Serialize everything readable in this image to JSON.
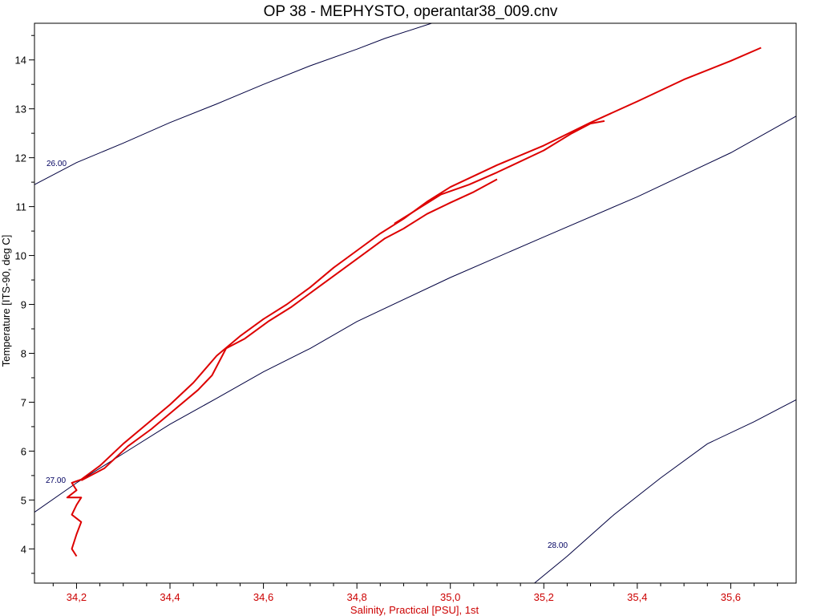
{
  "chart_data": {
    "type": "line",
    "title": "OP 38 - MEPHYSTO, operantar38_009.cnv",
    "xlabel": "Salinity, Practical [PSU], 1st",
    "ylabel": "Temperature [ITS-90, deg C]",
    "xlim": [
      34.11,
      35.74
    ],
    "ylim": [
      3.3,
      14.75
    ],
    "x_ticks": [
      34.2,
      34.4,
      34.6,
      34.8,
      35.0,
      35.2,
      35.4,
      35.6
    ],
    "x_tick_labels": [
      "34,2",
      "34,4",
      "34,6",
      "34,8",
      "35,0",
      "35,2",
      "35,4",
      "35,6"
    ],
    "y_ticks": [
      4,
      5,
      6,
      7,
      8,
      9,
      10,
      11,
      12,
      13,
      14
    ],
    "y_tick_labels": [
      "4",
      "5",
      "6",
      "7",
      "8",
      "9",
      "10",
      "11",
      "12",
      "13",
      "14"
    ],
    "grid": false,
    "colors": {
      "profile": "#dd0000",
      "isopycnal": "#000040",
      "axis": "#000000",
      "x_axis_text": "#cc0000"
    },
    "isopycnals": [
      {
        "label": "26.00",
        "points": [
          [
            34.11,
            11.45
          ],
          [
            34.2,
            11.9
          ],
          [
            34.3,
            12.3
          ],
          [
            34.4,
            12.72
          ],
          [
            34.5,
            13.1
          ],
          [
            34.6,
            13.5
          ],
          [
            34.7,
            13.88
          ],
          [
            34.8,
            14.22
          ],
          [
            34.86,
            14.44
          ],
          [
            34.96,
            14.75
          ]
        ]
      },
      {
        "label": "27.00",
        "points": [
          [
            34.11,
            4.75
          ],
          [
            34.2,
            5.35
          ],
          [
            34.3,
            5.95
          ],
          [
            34.4,
            6.55
          ],
          [
            34.5,
            7.08
          ],
          [
            34.6,
            7.62
          ],
          [
            34.7,
            8.1
          ],
          [
            34.8,
            8.65
          ],
          [
            35.0,
            9.55
          ],
          [
            35.2,
            10.38
          ],
          [
            35.4,
            11.2
          ],
          [
            35.6,
            12.1
          ],
          [
            35.74,
            12.85
          ]
        ]
      },
      {
        "label": "28.00",
        "points": [
          [
            35.18,
            3.3
          ],
          [
            35.25,
            3.85
          ],
          [
            35.35,
            4.7
          ],
          [
            35.45,
            5.45
          ],
          [
            35.55,
            6.15
          ],
          [
            35.65,
            6.6
          ],
          [
            35.74,
            7.05
          ]
        ]
      }
    ],
    "series": [
      {
        "values_xy": [
          [
            34.2,
            3.85
          ],
          [
            34.19,
            4.0
          ],
          [
            34.2,
            4.3
          ],
          [
            34.21,
            4.55
          ],
          [
            34.19,
            4.7
          ],
          [
            34.2,
            4.9
          ],
          [
            34.21,
            5.05
          ],
          [
            34.18,
            5.05
          ],
          [
            34.2,
            5.2
          ],
          [
            34.19,
            5.35
          ],
          [
            34.21,
            5.42
          ],
          [
            34.25,
            5.7
          ],
          [
            34.3,
            6.15
          ],
          [
            34.35,
            6.55
          ],
          [
            34.4,
            6.95
          ],
          [
            34.45,
            7.4
          ],
          [
            34.5,
            7.95
          ],
          [
            34.55,
            8.35
          ],
          [
            34.6,
            8.7
          ],
          [
            34.65,
            9.0
          ],
          [
            34.7,
            9.35
          ],
          [
            34.75,
            9.75
          ],
          [
            34.8,
            10.1
          ],
          [
            34.85,
            10.45
          ],
          [
            34.9,
            10.75
          ],
          [
            34.95,
            11.1
          ],
          [
            35.0,
            11.4
          ],
          [
            35.1,
            11.85
          ],
          [
            35.2,
            12.25
          ],
          [
            35.3,
            12.72
          ],
          [
            35.4,
            13.15
          ],
          [
            35.5,
            13.6
          ],
          [
            35.6,
            13.98
          ],
          [
            35.665,
            14.25
          ]
        ]
      },
      {
        "values_xy": [
          [
            34.21,
            5.4
          ],
          [
            34.26,
            5.65
          ],
          [
            34.31,
            6.1
          ],
          [
            34.36,
            6.45
          ],
          [
            34.41,
            6.85
          ],
          [
            34.46,
            7.25
          ],
          [
            34.49,
            7.55
          ],
          [
            34.52,
            8.1
          ],
          [
            34.56,
            8.3
          ],
          [
            34.61,
            8.65
          ],
          [
            34.66,
            8.95
          ],
          [
            34.71,
            9.3
          ],
          [
            34.76,
            9.65
          ],
          [
            34.81,
            10.0
          ],
          [
            34.86,
            10.35
          ],
          [
            34.9,
            10.55
          ],
          [
            34.95,
            10.85
          ],
          [
            35.0,
            11.08
          ],
          [
            35.05,
            11.3
          ],
          [
            35.1,
            11.56
          ]
        ]
      },
      {
        "values_xy": [
          [
            34.88,
            10.65
          ],
          [
            34.93,
            10.95
          ],
          [
            34.98,
            11.25
          ],
          [
            35.04,
            11.45
          ],
          [
            35.1,
            11.7
          ],
          [
            35.2,
            12.15
          ],
          [
            35.26,
            12.5
          ],
          [
            35.3,
            12.7
          ],
          [
            35.33,
            12.75
          ]
        ]
      }
    ]
  }
}
